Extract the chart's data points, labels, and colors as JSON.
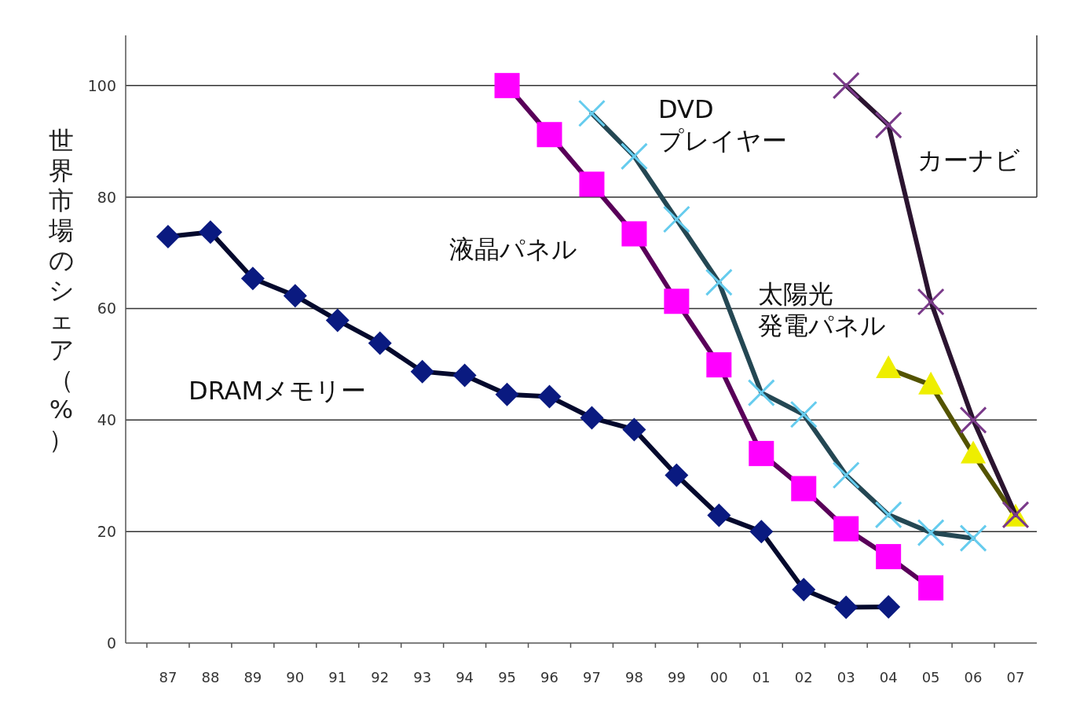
{
  "chart_data": {
    "type": "line",
    "ylabel": "世界市場のシェア（%）",
    "categories": [
      "87",
      "88",
      "89",
      "90",
      "91",
      "92",
      "93",
      "94",
      "95",
      "96",
      "97",
      "98",
      "99",
      "00",
      "01",
      "02",
      "03",
      "04",
      "05",
      "06",
      "07"
    ],
    "ylim": [
      0,
      109
    ],
    "yticks": [
      0,
      20,
      40,
      60,
      80,
      100
    ],
    "grid": "y",
    "series": [
      {
        "name": "DRAMメモリー",
        "color": "#0a1a80",
        "marker": "diamond",
        "values": [
          72.9,
          73.7,
          65.4,
          62.3,
          57.9,
          53.8,
          48.7,
          48,
          44.6,
          44.2,
          40.4,
          38.3,
          30.1,
          22.9,
          20,
          9.6,
          6.4,
          6.5,
          null,
          null,
          null
        ]
      },
      {
        "name": "液晶パネル",
        "color": "#ff00ff",
        "marker": "square",
        "values": [
          null,
          null,
          null,
          null,
          null,
          null,
          null,
          null,
          100,
          91.2,
          82.3,
          73.4,
          61.3,
          49.9,
          34,
          27.7,
          20.5,
          15.5,
          9.9,
          null,
          null
        ]
      },
      {
        "name": "DVDプレイヤー",
        "color": "#66ccee",
        "marker": "cross",
        "values": [
          null,
          null,
          null,
          null,
          null,
          null,
          null,
          null,
          null,
          null,
          95,
          87.3,
          76,
          64.7,
          44.9,
          41,
          30.1,
          23,
          19.8,
          18.8,
          null
        ]
      },
      {
        "name": "カーナビ",
        "color": "#7a3a8a",
        "marker": "cross",
        "values": [
          null,
          null,
          null,
          null,
          null,
          null,
          null,
          null,
          null,
          null,
          null,
          null,
          null,
          null,
          null,
          null,
          100,
          92.9,
          61.2,
          40,
          23
        ]
      },
      {
        "name": "太陽光発電パネル",
        "color": "#eeee00",
        "marker": "triangle",
        "values": [
          null,
          null,
          null,
          null,
          null,
          null,
          null,
          null,
          null,
          null,
          null,
          null,
          null,
          null,
          null,
          null,
          null,
          49.2,
          46.3,
          33.9,
          22.6
        ]
      }
    ]
  }
}
